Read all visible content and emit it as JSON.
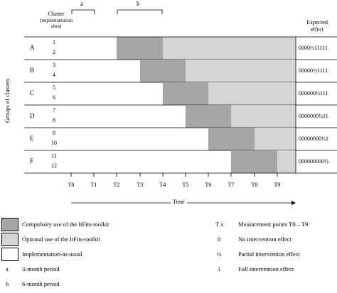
{
  "header": {
    "period_a": "a",
    "period_b": "b",
    "cluster_title": "Cluster",
    "cluster_subtitle_1": "(implementation",
    "cluster_subtitle_2": "sites)",
    "expected_title_1": "Expected",
    "expected_title_2": "effect",
    "y_axis_label": "Groups of clusters"
  },
  "colors": {
    "compulsory": "#a6a6a6",
    "optional": "#d4d4d4",
    "usual": "#ffffff",
    "border": "#000000"
  },
  "groups": [
    {
      "label": "A",
      "clusters": [
        "1",
        "2"
      ],
      "effect": "0000½11111",
      "compulsory_from": 2
    },
    {
      "label": "B",
      "clusters": [
        "3",
        "4"
      ],
      "effect": "00000½1111",
      "compulsory_from": 3
    },
    {
      "label": "C",
      "clusters": [
        "5",
        "6"
      ],
      "effect": "000000½111",
      "compulsory_from": 4
    },
    {
      "label": "D",
      "clusters": [
        "7",
        "8"
      ],
      "effect": "0000000½11",
      "compulsory_from": 5
    },
    {
      "label": "E",
      "clusters": [
        "9",
        "10"
      ],
      "effect": "00000000½1",
      "compulsory_from": 6
    },
    {
      "label": "F",
      "clusters": [
        "11",
        "12"
      ],
      "effect": "000000000½",
      "compulsory_from": 7
    }
  ],
  "time_points": [
    "T0",
    "T1",
    "T2",
    "T3",
    "T4",
    "T5",
    "T6",
    "T7",
    "T8",
    "T9"
  ],
  "time_label": "Time",
  "legend": {
    "compulsory": "Compulsory use of the ItFits-toolkit",
    "optional": "Optional use of the ItFits-toolkit",
    "usual": "Implementation-as-usual",
    "a_key": "a",
    "a_text": "3-month period",
    "b_key": "b",
    "b_text": "6-month period",
    "tx_key": "T x",
    "tx_text": "Measurement points T0 – T9",
    "zero_key": "0",
    "zero_text": "No intervention effect",
    "half_key": "½",
    "half_text": "Partial intervention effect",
    "one_key": "1",
    "one_text": "Full intervention effect"
  }
}
